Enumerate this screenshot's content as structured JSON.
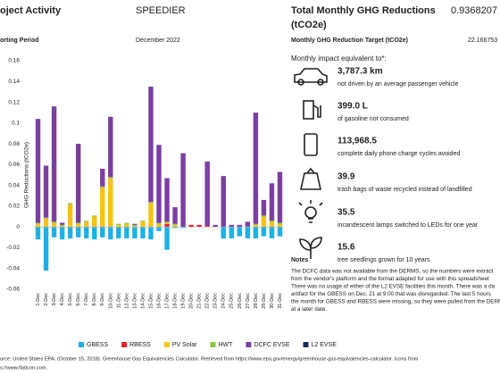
{
  "header": {
    "title": "oject Activity",
    "project": "SPEEDIER",
    "period_label": "orting Period",
    "period": "December 2022"
  },
  "summary": {
    "title_line1": "Total Monthly GHG Reductions",
    "title_line2": "(tCO2e)",
    "total": "0.9368207",
    "target_label": "Monthly GHG Reduction Target (tCO2e)",
    "target": "22.166753",
    "impact_heading": "Monthly impact equivalent to*:"
  },
  "impacts": [
    {
      "value": "3,787.3 km",
      "text": "not driven by an average passenger vehicle"
    },
    {
      "value": "399.0 L",
      "text": "of gasoline not consumed"
    },
    {
      "value": "113,968.5",
      "text": "complete daily phone charge cycles avoided"
    },
    {
      "value": "39.9",
      "text": "trash bags of waste recycled instead of landfilled"
    },
    {
      "value": "35.5",
      "text": "incandescent lamps switched to LEDs for one year"
    },
    {
      "value": "15.6",
      "text": "tree seedlings grown for 10 years"
    }
  ],
  "notes": {
    "title": "Notes",
    "lines": [
      "The DCFC data was not available from the DERMS, so the numbers were extract",
      "from the vendor's platform and the format adapted for use with this spreadsheet",
      "There was no usage of either of the L2 EVSE facilities this month. There was a da",
      "artifact for the GBESS on Dec. 21 at 9:00 that was disregarded. The last 5 hours",
      "the month for GBESS and RBESS were missing, so they were pulled from the DERM",
      "at a later date."
    ]
  },
  "source": [
    "urce: United States EPA. (October 15, 2018). Greenhouse Gas Equivalencies Calculator. Retrieved from https://www.epa.gov/energy/greenhouse-gas-equivalencies-calculator. Icons from",
    "s://www.flaticon.com."
  ],
  "chart_data": {
    "type": "bar",
    "stacked": true,
    "y_label": "GHG Reductions (tCO2e)",
    "categories": [
      "1-Dec",
      "2-Dec",
      "3-Dec",
      "4-Dec",
      "5-Dec",
      "6-Dec",
      "7-Dec",
      "8-Dec",
      "9-Dec",
      "10-Dec",
      "11-Dec",
      "12-Dec",
      "13-Dec",
      "14-Dec",
      "15-Dec",
      "16-Dec",
      "17-Dec",
      "18-Dec",
      "19-Dec",
      "20-Dec",
      "21-Dec",
      "22-Dec",
      "23-Dec",
      "24-Dec",
      "25-Dec",
      "26-Dec",
      "27-Dec",
      "28-Dec",
      "29-Dec",
      "30-Dec",
      "31-Dec"
    ],
    "series": [
      {
        "name": "GBESS",
        "color": "#1fb0e6",
        "values": [
          -0.012,
          -0.042,
          -0.01,
          -0.012,
          -0.011,
          -0.01,
          -0.011,
          -0.012,
          -0.01,
          -0.012,
          -0.011,
          -0.011,
          -0.011,
          -0.011,
          -0.012,
          -0.004,
          -0.022,
          -0.001,
          -0.001,
          0,
          0,
          0,
          0,
          -0.011,
          -0.011,
          -0.009,
          -0.011,
          -0.011,
          -0.009,
          -0.011,
          -0.009
        ]
      },
      {
        "name": "RBESS",
        "color": "#e8212a",
        "values": [
          0,
          0,
          0,
          0,
          0,
          0,
          0,
          0,
          0,
          0,
          0,
          0,
          0,
          0,
          0,
          0,
          0.003,
          0,
          0,
          0.002,
          0.002,
          0.001,
          0,
          0,
          0,
          0,
          0,
          0,
          0,
          0,
          0
        ]
      },
      {
        "name": "PV Solar",
        "color": "#f7c11a",
        "values": [
          0.003,
          0.008,
          0.004,
          0.001,
          0.022,
          0.003,
          0.005,
          0.01,
          0.038,
          0.047,
          0.002,
          0.003,
          0.001,
          0.005,
          0.023,
          0.003,
          0.001,
          0.002,
          0,
          0,
          0,
          0,
          0,
          0,
          0,
          0,
          0,
          0.002,
          0.01,
          0.005,
          0.003
        ]
      },
      {
        "name": "HWT",
        "color": "#8cc63f",
        "values": [
          0.001,
          0.001,
          0.001,
          0.001,
          0.001,
          0.001,
          0.001,
          0.001,
          0.001,
          0.001,
          0.001,
          0.001,
          0.001,
          0.001,
          0.001,
          0.001,
          0.001,
          0.001,
          0,
          0,
          0,
          0,
          0,
          0,
          0,
          0,
          0,
          0.001,
          0.001,
          0.001,
          0.001
        ]
      },
      {
        "name": "DCFC EVSE",
        "color": "#7b3fa0",
        "values": [
          0.1,
          0.05,
          0.111,
          0.002,
          0,
          0.076,
          0,
          0,
          0.017,
          0.058,
          0,
          0,
          0.001,
          0,
          0.111,
          0.075,
          0.042,
          0.016,
          0.071,
          0,
          0,
          0.062,
          0.002,
          0.049,
          0.002,
          0.002,
          0.005,
          0.107,
          0.015,
          0.036,
          0.049
        ]
      },
      {
        "name": "L2 EVSE",
        "color": "#1a2a5a",
        "values": [
          0,
          0,
          0,
          0,
          0,
          0,
          0,
          0,
          0,
          0,
          0,
          0,
          0,
          0,
          0,
          0,
          0,
          0,
          0,
          0,
          0,
          0,
          0,
          0,
          0,
          0,
          0,
          0,
          0,
          0,
          0
        ]
      }
    ],
    "ylim": [
      -0.06,
      0.16
    ],
    "yticks": [
      -0.06,
      -0.04,
      -0.02,
      0,
      0.02,
      0.04,
      0.06,
      0.08,
      0.1,
      0.12,
      0.14,
      0.16
    ],
    "grid": false,
    "legend": "bottom"
  }
}
